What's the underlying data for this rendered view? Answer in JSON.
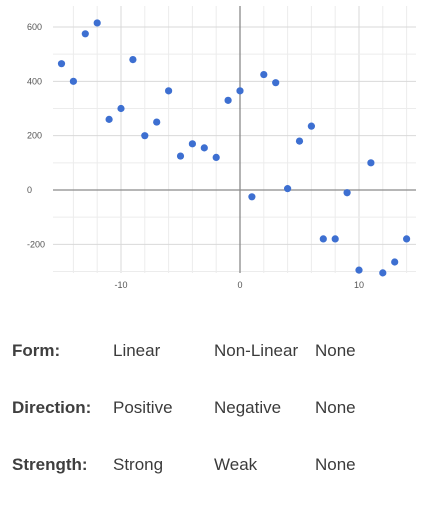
{
  "chart_data": {
    "type": "scatter",
    "xlim": [
      -15,
      15
    ],
    "ylim": [
      -300,
      650
    ],
    "x_ticks": [
      -10,
      0,
      10
    ],
    "y_ticks": [
      600,
      400,
      200,
      0,
      -200
    ],
    "grid": true,
    "point_color": "#3d6fd1",
    "points": [
      {
        "x": -15,
        "y": 465
      },
      {
        "x": -14,
        "y": 400
      },
      {
        "x": -13,
        "y": 575
      },
      {
        "x": -12,
        "y": 615
      },
      {
        "x": -11,
        "y": 260
      },
      {
        "x": -10,
        "y": 300
      },
      {
        "x": -9,
        "y": 480
      },
      {
        "x": -8,
        "y": 200
      },
      {
        "x": -7,
        "y": 250
      },
      {
        "x": -6,
        "y": 365
      },
      {
        "x": -5,
        "y": 125
      },
      {
        "x": -4,
        "y": 170
      },
      {
        "x": -3,
        "y": 155
      },
      {
        "x": -2,
        "y": 120
      },
      {
        "x": -1,
        "y": 330
      },
      {
        "x": 0,
        "y": 365
      },
      {
        "x": 1,
        "y": -25
      },
      {
        "x": 2,
        "y": 425
      },
      {
        "x": 3,
        "y": 395
      },
      {
        "x": 4,
        "y": 5
      },
      {
        "x": 5,
        "y": 180
      },
      {
        "x": 6,
        "y": 235
      },
      {
        "x": 7,
        "y": -180
      },
      {
        "x": 8,
        "y": -180
      },
      {
        "x": 9,
        "y": -10
      },
      {
        "x": 10,
        "y": -295
      },
      {
        "x": 11,
        "y": 100
      },
      {
        "x": 12,
        "y": -305
      },
      {
        "x": 13,
        "y": -265
      },
      {
        "x": 14,
        "y": -180
      }
    ]
  },
  "questions": [
    {
      "label": "Form:",
      "options": [
        "Linear",
        "Non-Linear",
        "None"
      ]
    },
    {
      "label": "Direction:",
      "options": [
        "Positive",
        "Negative",
        "None"
      ]
    },
    {
      "label": "Strength:",
      "options": [
        "Strong",
        "Weak",
        "None"
      ]
    }
  ]
}
